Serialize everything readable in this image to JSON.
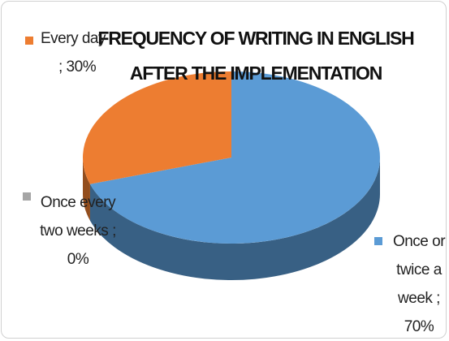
{
  "chart_data": {
    "type": "pie",
    "title": "FREQUENCY OF WRITING IN ENGLISH AFTER THE IMPLEMENTATION",
    "categories": [
      "Once or twice a week",
      "Every day",
      "Once every two weeks"
    ],
    "values": [
      70,
      30,
      0
    ],
    "value_labels": [
      "; 70%",
      "; 30%",
      "; 0%"
    ],
    "colors": [
      "#5b9bd5",
      "#ed7d31",
      "#a5a5a5"
    ]
  }
}
